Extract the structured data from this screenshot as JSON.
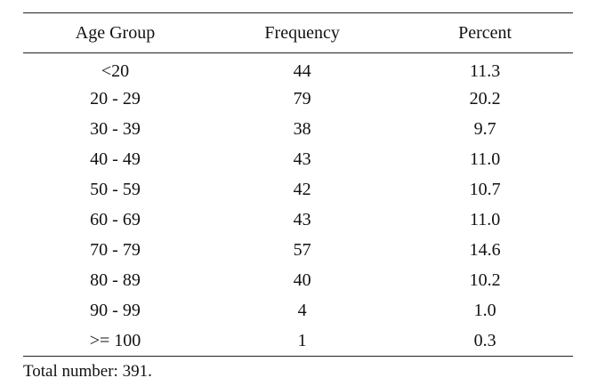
{
  "table": {
    "headers": [
      "Age Group",
      "Frequency",
      "Percent"
    ],
    "rows": [
      [
        "<20",
        "44",
        "11.3"
      ],
      [
        "20 - 29",
        "79",
        "20.2"
      ],
      [
        "30 - 39",
        "38",
        "9.7"
      ],
      [
        "40 - 49",
        "43",
        "11.0"
      ],
      [
        "50 - 59",
        "42",
        "10.7"
      ],
      [
        "60 - 69",
        "43",
        "11.0"
      ],
      [
        "70 - 79",
        "57",
        "14.6"
      ],
      [
        "80 - 89",
        "40",
        "10.2"
      ],
      [
        "90 - 99",
        "4",
        "1.0"
      ],
      [
        ">= 100",
        "1",
        "0.3"
      ]
    ]
  },
  "footnote": "Total number: 391."
}
